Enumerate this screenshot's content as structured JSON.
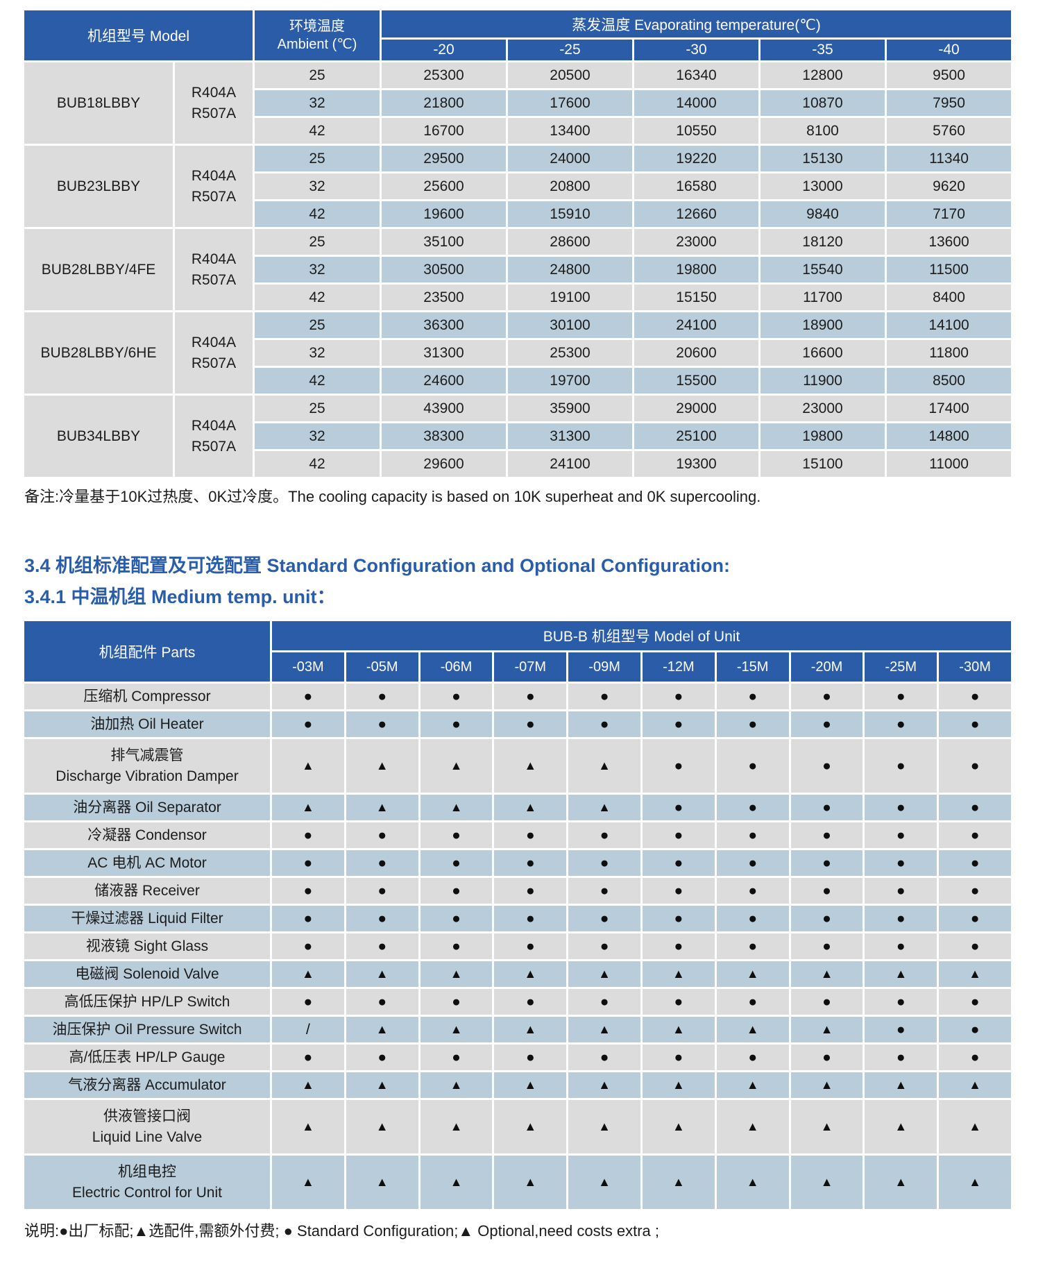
{
  "colors": {
    "header_blue": "#2b5ca8",
    "row_gray": "#dcdcdc",
    "row_blue": "#b9ccd9",
    "heading_text": "#2a5da9"
  },
  "capacity_table": {
    "header": {
      "model": "机组型号 Model",
      "ambient_line1": "环境温度",
      "ambient_line2": "Ambient (℃)",
      "evap": "蒸发温度 Evaporating temperature(℃)",
      "evap_temps": [
        "-20",
        "-25",
        "-30",
        "-35",
        "-40"
      ]
    },
    "groups": [
      {
        "model": "BUB18LBBY",
        "refrigerant": [
          "R404A",
          "R507A"
        ],
        "rows": [
          {
            "ambient": "25",
            "values": [
              "25300",
              "20500",
              "16340",
              "12800",
              "9500"
            ]
          },
          {
            "ambient": "32",
            "values": [
              "21800",
              "17600",
              "14000",
              "10870",
              "7950"
            ]
          },
          {
            "ambient": "42",
            "values": [
              "16700",
              "13400",
              "10550",
              "8100",
              "5760"
            ]
          }
        ]
      },
      {
        "model": "BUB23LBBY",
        "refrigerant": [
          "R404A",
          "R507A"
        ],
        "rows": [
          {
            "ambient": "25",
            "values": [
              "29500",
              "24000",
              "19220",
              "15130",
              "11340"
            ]
          },
          {
            "ambient": "32",
            "values": [
              "25600",
              "20800",
              "16580",
              "13000",
              "9620"
            ]
          },
          {
            "ambient": "42",
            "values": [
              "19600",
              "15910",
              "12660",
              "9840",
              "7170"
            ]
          }
        ]
      },
      {
        "model": "BUB28LBBY/4FE",
        "refrigerant": [
          "R404A",
          "R507A"
        ],
        "rows": [
          {
            "ambient": "25",
            "values": [
              "35100",
              "28600",
              "23000",
              "18120",
              "13600"
            ]
          },
          {
            "ambient": "32",
            "values": [
              "30500",
              "24800",
              "19800",
              "15540",
              "11500"
            ]
          },
          {
            "ambient": "42",
            "values": [
              "23500",
              "19100",
              "15150",
              "11700",
              "8400"
            ]
          }
        ]
      },
      {
        "model": "BUB28LBBY/6HE",
        "refrigerant": [
          "R404A",
          "R507A"
        ],
        "rows": [
          {
            "ambient": "25",
            "values": [
              "36300",
              "30100",
              "24100",
              "18900",
              "14100"
            ]
          },
          {
            "ambient": "32",
            "values": [
              "31300",
              "25300",
              "20600",
              "16600",
              "11800"
            ]
          },
          {
            "ambient": "42",
            "values": [
              "24600",
              "19700",
              "15500",
              "11900",
              "8500"
            ]
          }
        ]
      },
      {
        "model": "BUB34LBBY",
        "refrigerant": [
          "R404A",
          "R507A"
        ],
        "rows": [
          {
            "ambient": "25",
            "values": [
              "43900",
              "35900",
              "29000",
              "23000",
              "17400"
            ]
          },
          {
            "ambient": "32",
            "values": [
              "38300",
              "31300",
              "25100",
              "19800",
              "14800"
            ]
          },
          {
            "ambient": "42",
            "values": [
              "29600",
              "24100",
              "19300",
              "15100",
              "11000"
            ]
          }
        ]
      }
    ],
    "note": "备注:冷量基于10K过热度、0K过冷度。The cooling capacity is based on 10K superheat and 0K supercooling."
  },
  "section": {
    "title_line1": "3.4 机组标准配置及可选配置 Standard Configuration and Optional Configuration:",
    "title_line2": "3.4.1 中温机组 Medium temp. unit："
  },
  "config_table": {
    "header": {
      "parts": "机组配件 Parts",
      "model_of_unit": "BUB-B 机组型号 Model of Unit",
      "columns": [
        "-03M",
        "-05M",
        "-06M",
        "-07M",
        "-09M",
        "-12M",
        "-15M",
        "-20M",
        "-25M",
        "-30M"
      ]
    },
    "rows": [
      {
        "part": [
          "压缩机 Compressor"
        ],
        "marks": [
          "●",
          "●",
          "●",
          "●",
          "●",
          "●",
          "●",
          "●",
          "●",
          "●"
        ]
      },
      {
        "part": [
          "油加热 Oil Heater"
        ],
        "marks": [
          "●",
          "●",
          "●",
          "●",
          "●",
          "●",
          "●",
          "●",
          "●",
          "●"
        ]
      },
      {
        "part": [
          "排气减震管",
          "Discharge Vibration Damper"
        ],
        "marks": [
          "▲",
          "▲",
          "▲",
          "▲",
          "▲",
          "●",
          "●",
          "●",
          "●",
          "●"
        ]
      },
      {
        "part": [
          "油分离器 Oil Separator"
        ],
        "marks": [
          "▲",
          "▲",
          "▲",
          "▲",
          "▲",
          "●",
          "●",
          "●",
          "●",
          "●"
        ]
      },
      {
        "part": [
          "冷凝器 Condensor"
        ],
        "marks": [
          "●",
          "●",
          "●",
          "●",
          "●",
          "●",
          "●",
          "●",
          "●",
          "●"
        ]
      },
      {
        "part": [
          "AC 电机  AC Motor"
        ],
        "marks": [
          "●",
          "●",
          "●",
          "●",
          "●",
          "●",
          "●",
          "●",
          "●",
          "●"
        ]
      },
      {
        "part": [
          "储液器  Receiver"
        ],
        "marks": [
          "●",
          "●",
          "●",
          "●",
          "●",
          "●",
          "●",
          "●",
          "●",
          "●"
        ]
      },
      {
        "part": [
          "干燥过滤器  Liquid Filter"
        ],
        "marks": [
          "●",
          "●",
          "●",
          "●",
          "●",
          "●",
          "●",
          "●",
          "●",
          "●"
        ]
      },
      {
        "part": [
          "视液镜 Sight Glass"
        ],
        "marks": [
          "●",
          "●",
          "●",
          "●",
          "●",
          "●",
          "●",
          "●",
          "●",
          "●"
        ]
      },
      {
        "part": [
          "电磁阀 Solenoid Valve"
        ],
        "marks": [
          "▲",
          "▲",
          "▲",
          "▲",
          "▲",
          "▲",
          "▲",
          "▲",
          "▲",
          "▲"
        ]
      },
      {
        "part": [
          "高低压保护 HP/LP Switch"
        ],
        "marks": [
          "●",
          "●",
          "●",
          "●",
          "●",
          "●",
          "●",
          "●",
          "●",
          "●"
        ]
      },
      {
        "part": [
          "油压保护 Oil Pressure Switch"
        ],
        "marks": [
          "/",
          "▲",
          "▲",
          "▲",
          "▲",
          "▲",
          "▲",
          "▲",
          "●",
          "●"
        ]
      },
      {
        "part": [
          "高/低压表 HP/LP Gauge"
        ],
        "marks": [
          "●",
          "●",
          "●",
          "●",
          "●",
          "●",
          "●",
          "●",
          "●",
          "●"
        ]
      },
      {
        "part": [
          "气液分离器 Accumulator"
        ],
        "marks": [
          "▲",
          "▲",
          "▲",
          "▲",
          "▲",
          "▲",
          "▲",
          "▲",
          "▲",
          "▲"
        ]
      },
      {
        "part": [
          "供液管接口阀",
          "Liquid Line Valve"
        ],
        "marks": [
          "▲",
          "▲",
          "▲",
          "▲",
          "▲",
          "▲",
          "▲",
          "▲",
          "▲",
          "▲"
        ]
      },
      {
        "part": [
          "机组电控",
          "Electric Control for Unit"
        ],
        "marks": [
          "▲",
          "▲",
          "▲",
          "▲",
          "▲",
          "▲",
          "▲",
          "▲",
          "▲",
          "▲"
        ]
      }
    ],
    "note": "说明:●出厂标配;▲选配件,需额外付费; ● Standard Configuration;▲ Optional,need costs extra ;"
  }
}
